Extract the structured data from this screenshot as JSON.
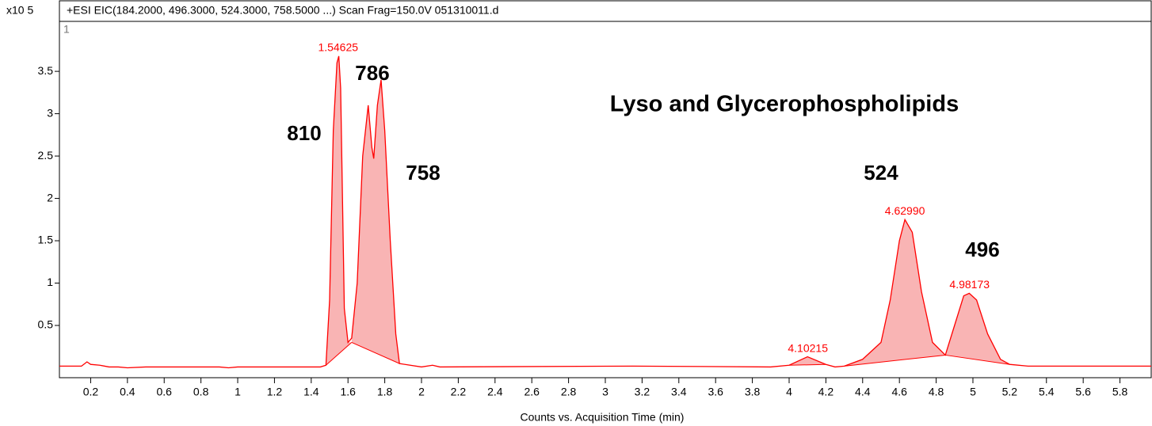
{
  "chart_data": {
    "type": "chromatogram",
    "title": "+ESI EIC(184.2000, 496.3000, 524.3000, 758.5000 ...) Scan Frag=150.0V 051310011.d",
    "y_unit_label": "x10 5",
    "panel_label": "1",
    "xlabel": "Counts vs. Acquisition Time (min)",
    "xlim": [
      0.03,
      5.97
    ],
    "ylim": [
      -0.117,
      4.09
    ],
    "xticks": [
      0.2,
      0.4,
      0.6,
      0.8,
      1,
      1.2,
      1.4,
      1.6,
      1.8,
      2,
      2.2,
      2.4,
      2.6,
      2.8,
      3,
      3.2,
      3.4,
      3.6,
      3.8,
      4,
      4.2,
      4.4,
      4.6,
      4.8,
      5,
      5.2,
      5.4,
      5.6,
      5.8
    ],
    "yticks": [
      0.5,
      1,
      1.5,
      2,
      2.5,
      3,
      3.5
    ],
    "color": "#ff0000",
    "fill_color": "#f9b4b4",
    "trace": {
      "x": [
        0.03,
        0.15,
        0.18,
        0.2,
        0.25,
        0.3,
        0.35,
        0.4,
        0.5,
        0.9,
        0.95,
        1.0,
        1.45,
        1.48,
        1.5,
        1.52,
        1.54,
        1.55,
        1.56,
        1.57,
        1.58,
        1.6,
        1.62,
        1.65,
        1.68,
        1.71,
        1.73,
        1.74,
        1.76,
        1.78,
        1.8,
        1.83,
        1.86,
        1.88,
        2.0,
        2.06,
        2.1,
        3.15,
        3.9,
        4.0,
        4.1,
        4.2,
        4.25,
        4.3,
        4.4,
        4.5,
        4.55,
        4.6,
        4.63,
        4.67,
        4.72,
        4.78,
        4.85,
        4.9,
        4.95,
        4.98,
        5.02,
        5.08,
        5.15,
        5.2,
        5.3,
        5.97
      ],
      "values": [
        0.02,
        0.02,
        0.07,
        0.04,
        0.03,
        0.01,
        0.01,
        0.0,
        0.01,
        0.01,
        0.0,
        0.01,
        0.01,
        0.03,
        0.8,
        2.8,
        3.6,
        3.68,
        3.3,
        2.0,
        0.7,
        0.3,
        0.35,
        1.0,
        2.5,
        3.1,
        2.6,
        2.47,
        3.1,
        3.4,
        2.8,
        1.5,
        0.4,
        0.05,
        0.01,
        0.03,
        0.01,
        0.02,
        0.01,
        0.03,
        0.13,
        0.04,
        0.01,
        0.02,
        0.1,
        0.3,
        0.8,
        1.5,
        1.75,
        1.6,
        0.9,
        0.3,
        0.15,
        0.5,
        0.85,
        0.88,
        0.8,
        0.4,
        0.1,
        0.04,
        0.02,
        0.02
      ]
    },
    "integration": [
      {
        "x": [
          1.48,
          1.62
        ],
        "values": [
          0.03,
          0.3
        ]
      },
      {
        "x": [
          1.62,
          1.88
        ],
        "values": [
          0.3,
          0.05
        ]
      },
      {
        "x": [
          4.0,
          4.2
        ],
        "values": [
          0.03,
          0.04
        ]
      },
      {
        "x": [
          4.3,
          4.85
        ],
        "values": [
          0.02,
          0.15
        ]
      },
      {
        "x": [
          4.85,
          5.2
        ],
        "values": [
          0.15,
          0.04
        ]
      }
    ],
    "peak_labels": {
      "values": [
        1.54625,
        4.6299,
        4.98173,
        4.10215
      ],
      "value_labels": [
        "1.54625",
        "4.62990",
        "4.98173",
        "4.10215"
      ],
      "y": [
        3.68,
        1.75,
        0.88,
        0.13
      ]
    },
    "annotations": [
      "Lyso and Glycerophospholipids",
      "810",
      "786",
      "758",
      "524",
      "496"
    ]
  }
}
